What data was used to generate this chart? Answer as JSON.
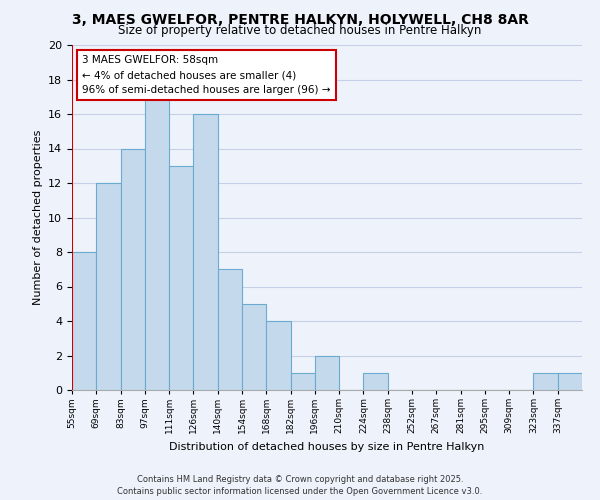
{
  "title": "3, MAES GWELFOR, PENTRE HALKYN, HOLYWELL, CH8 8AR",
  "subtitle": "Size of property relative to detached houses in Pentre Halkyn",
  "xlabel": "Distribution of detached houses by size in Pentre Halkyn",
  "ylabel": "Number of detached properties",
  "bin_labels": [
    "55sqm",
    "69sqm",
    "83sqm",
    "97sqm",
    "111sqm",
    "126sqm",
    "140sqm",
    "154sqm",
    "168sqm",
    "182sqm",
    "196sqm",
    "210sqm",
    "224sqm",
    "238sqm",
    "252sqm",
    "267sqm",
    "281sqm",
    "295sqm",
    "309sqm",
    "323sqm",
    "337sqm"
  ],
  "n_bins": 21,
  "counts": [
    8,
    12,
    14,
    17,
    13,
    16,
    7,
    5,
    4,
    1,
    2,
    0,
    1,
    0,
    0,
    0,
    0,
    0,
    0,
    1,
    1
  ],
  "bar_color": "#c5d9ed",
  "bar_edgecolor": "#6aabcf",
  "ylim": [
    0,
    20
  ],
  "yticks": [
    0,
    2,
    4,
    6,
    8,
    10,
    12,
    14,
    16,
    18,
    20
  ],
  "annotation_title": "3 MAES GWELFOR: 58sqm",
  "annotation_line1": "← 4% of detached houses are smaller (4)",
  "annotation_line2": "96% of semi-detached houses are larger (96) →",
  "annotation_box_facecolor": "#ffffff",
  "annotation_box_edgecolor": "#cc0000",
  "marker_bin": 0,
  "marker_color": "#cc0000",
  "footer_line1": "Contains HM Land Registry data © Crown copyright and database right 2025.",
  "footer_line2": "Contains public sector information licensed under the Open Government Licence v3.0.",
  "bg_color": "#eef2fb",
  "grid_color": "#c5d0e8",
  "title_fontsize": 10,
  "subtitle_fontsize": 8.5,
  "ylabel_fontsize": 8,
  "xlabel_fontsize": 8
}
